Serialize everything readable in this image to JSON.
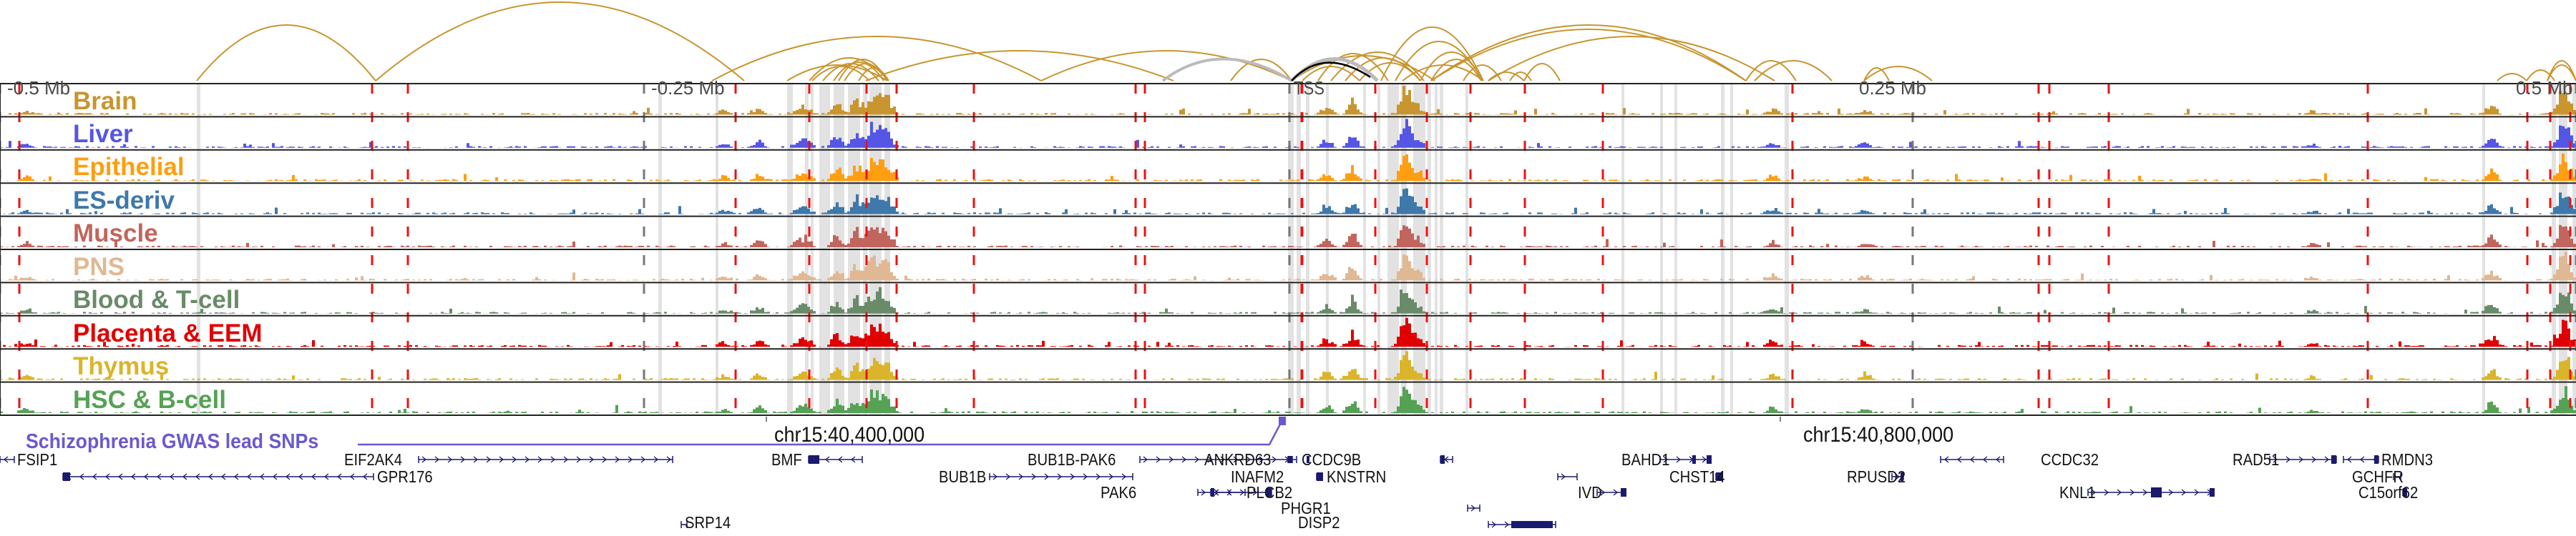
{
  "browser": {
    "colors": {
      "arc": "#c8952f",
      "arc_highlight": "#000000",
      "highlight_band": "#e2e2e2",
      "snp_marker": "#6a5acd",
      "gene": "#1a1a6e",
      "red_marker": "#ee1111",
      "axis_dash": "#777777"
    },
    "scale_labels": [
      {
        "label": "-0.5 Mb",
        "offset_mb": -0.5
      },
      {
        "label": "-0.25 Mb",
        "offset_mb": -0.25
      },
      {
        "label": "TSS",
        "offset_mb": 0
      },
      {
        "label": "0.25 Mb",
        "offset_mb": 0.25
      },
      {
        "label": "0.5 Mb",
        "offset_mb": 0.5
      }
    ],
    "tracks": [
      {
        "label": "Brain",
        "color": "#c8952f"
      },
      {
        "label": "Liver",
        "color": "#5555e6"
      },
      {
        "label": "Epithelial",
        "color": "#ff9e10"
      },
      {
        "label": "ES-deriv",
        "color": "#3f78ab"
      },
      {
        "label": "Muscle",
        "color": "#c2655c"
      },
      {
        "label": "PNS",
        "color": "#e0b894"
      },
      {
        "label": "Blood & T-cell",
        "color": "#698b69"
      },
      {
        "label": "Placenta & EEM",
        "color": "#e00000"
      },
      {
        "label": "Thymus",
        "color": "#dab52b"
      },
      {
        "label": "HSC & B-cell",
        "color": "#55a255"
      }
    ],
    "ruler": [
      {
        "label": "chr15:40,400,000"
      },
      {
        "label": "chr15:40,800,000"
      }
    ],
    "snp_track": {
      "label": "Schizophrenia GWAS lead SNPs"
    },
    "genes": [
      {
        "name": "FSIP1",
        "strand": "-"
      },
      {
        "name": "EIF2AK4",
        "strand": "+"
      },
      {
        "name": "GPR176",
        "strand": "-"
      },
      {
        "name": "SRP14",
        "strand": "-"
      },
      {
        "name": "BMF",
        "strand": "-"
      },
      {
        "name": "BUB1B",
        "strand": "+"
      },
      {
        "name": "BUB1B-PAK6",
        "strand": "+"
      },
      {
        "name": "PAK6",
        "strand": "+"
      },
      {
        "name": "ANKRD63",
        "strand": "-"
      },
      {
        "name": "INAFM2",
        "strand": "+"
      },
      {
        "name": "PLCB2",
        "strand": "-"
      },
      {
        "name": "CCDC9B",
        "strand": "-"
      },
      {
        "name": "PHGR1",
        "strand": "+"
      },
      {
        "name": "DISP2",
        "strand": "+"
      },
      {
        "name": "KNSTRN",
        "strand": "+"
      },
      {
        "name": "IVD",
        "strand": "+"
      },
      {
        "name": "BAHD1",
        "strand": "+"
      },
      {
        "name": "CHST14",
        "strand": "+"
      },
      {
        "name": "CCDC32",
        "strand": "-"
      },
      {
        "name": "RPUSD2",
        "strand": "+"
      },
      {
        "name": "KNL1",
        "strand": "+"
      },
      {
        "name": "RAD51",
        "strand": "+"
      },
      {
        "name": "RMDN3",
        "strand": "-"
      },
      {
        "name": "GCHFR",
        "strand": "+"
      },
      {
        "name": "C15orf62",
        "strand": "+"
      }
    ]
  }
}
